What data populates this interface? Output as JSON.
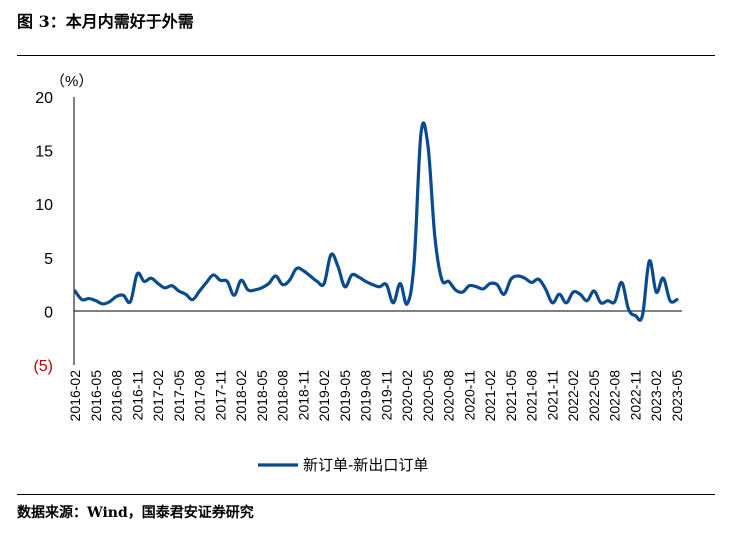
{
  "figure": {
    "title": "图 3：本月内需好于外需",
    "source": "数据来源：Wind，国泰君安证券研究"
  },
  "colors": {
    "series": "#0a4a8f",
    "negative_label": "#c00000",
    "axis": "#000000"
  },
  "chart_data": {
    "type": "line",
    "title": "",
    "xlabel": "",
    "ylabel": "",
    "y_unit_label": "（%）",
    "ylim": [
      -5,
      20
    ],
    "yticks": [
      -5,
      0,
      5,
      10,
      15,
      20
    ],
    "ytick_labels": [
      "(5)",
      "0",
      "5",
      "10",
      "15",
      "20"
    ],
    "grid": false,
    "legend_position": "bottom-center",
    "x_tick_labels": [
      "2016-02",
      "2016-05",
      "2016-08",
      "2016-11",
      "2017-02",
      "2017-05",
      "2017-08",
      "2017-11",
      "2018-02",
      "2018-05",
      "2018-08",
      "2018-11",
      "2019-02",
      "2019-05",
      "2019-08",
      "2019-11",
      "2020-02",
      "2020-05",
      "2020-08",
      "2020-11",
      "2021-02",
      "2021-05",
      "2021-08",
      "2021-11",
      "2022-02",
      "2022-05",
      "2022-08",
      "2022-11",
      "2023-02",
      "2023-05"
    ],
    "x": [
      "2016-02",
      "2016-03",
      "2016-04",
      "2016-05",
      "2016-06",
      "2016-07",
      "2016-08",
      "2016-09",
      "2016-10",
      "2016-11",
      "2016-12",
      "2017-01",
      "2017-02",
      "2017-03",
      "2017-04",
      "2017-05",
      "2017-06",
      "2017-07",
      "2017-08",
      "2017-09",
      "2017-10",
      "2017-11",
      "2017-12",
      "2018-01",
      "2018-02",
      "2018-03",
      "2018-04",
      "2018-05",
      "2018-06",
      "2018-07",
      "2018-08",
      "2018-09",
      "2018-10",
      "2018-11",
      "2018-12",
      "2019-01",
      "2019-02",
      "2019-03",
      "2019-04",
      "2019-05",
      "2019-06",
      "2019-07",
      "2019-08",
      "2019-09",
      "2019-10",
      "2019-11",
      "2019-12",
      "2020-01",
      "2020-02",
      "2020-03",
      "2020-04",
      "2020-05",
      "2020-06",
      "2020-07",
      "2020-08",
      "2020-09",
      "2020-10",
      "2020-11",
      "2020-12",
      "2021-01",
      "2021-02",
      "2021-03",
      "2021-04",
      "2021-05",
      "2021-06",
      "2021-07",
      "2021-08",
      "2021-09",
      "2021-10",
      "2021-11",
      "2021-12",
      "2022-01",
      "2022-02",
      "2022-03",
      "2022-04",
      "2022-05",
      "2022-06",
      "2022-07",
      "2022-08",
      "2022-09",
      "2022-10",
      "2022-11",
      "2022-12",
      "2023-01",
      "2023-02",
      "2023-03",
      "2023-04",
      "2023-05"
    ],
    "series": [
      {
        "name": "新订单-新出口订单",
        "values": [
          1.9,
          1.1,
          1.2,
          1.0,
          0.7,
          0.9,
          1.4,
          1.5,
          0.9,
          3.5,
          2.8,
          3.1,
          2.6,
          2.2,
          2.4,
          1.9,
          1.6,
          1.1,
          1.9,
          2.7,
          3.4,
          2.9,
          2.8,
          1.5,
          2.9,
          2.0,
          2.0,
          2.2,
          2.6,
          3.3,
          2.5,
          2.9,
          4.0,
          3.8,
          3.3,
          2.8,
          2.6,
          5.3,
          4.2,
          2.3,
          3.4,
          3.2,
          2.8,
          2.5,
          2.3,
          2.5,
          0.8,
          2.6,
          0.7,
          4.5,
          16.6,
          15.5,
          7.0,
          3.0,
          2.8,
          2.0,
          1.8,
          2.4,
          2.3,
          2.1,
          2.6,
          2.5,
          1.6,
          3.0,
          3.3,
          3.1,
          2.7,
          3.0,
          2.1,
          0.8,
          1.6,
          0.8,
          1.8,
          1.6,
          1.0,
          1.9,
          0.8,
          1.0,
          0.9,
          2.7,
          0.2,
          -0.4,
          -0.4,
          4.7,
          1.8,
          3.1,
          1.0,
          1.1
        ]
      }
    ]
  }
}
